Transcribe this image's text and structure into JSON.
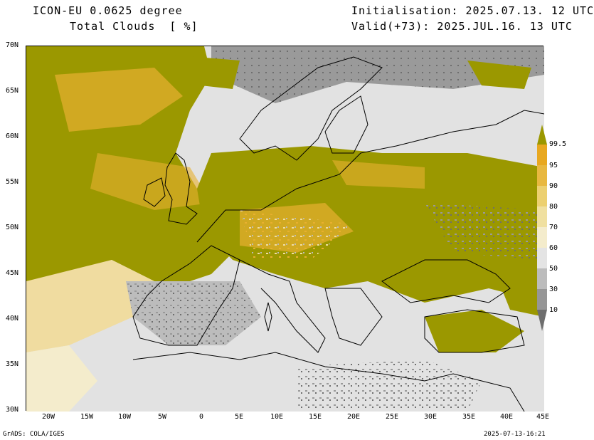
{
  "header": {
    "model": "ICON-EU 0.0625 degree",
    "variable": "Total Clouds  [ %]",
    "init": "Initialisation: 2025.07.13. 12 UTC",
    "valid": "Valid(+73): 2025.JUL.16. 13 UTC"
  },
  "footer": {
    "left": "GrADS: COLA/IGES",
    "right": "2025-07-13-16:21"
  },
  "axes": {
    "lat_labels": [
      "70N",
      "65N",
      "60N",
      "55N",
      "50N",
      "45N",
      "40N",
      "35N",
      "30N"
    ],
    "lon_labels": [
      "20W",
      "15W",
      "10W",
      "5W",
      "0",
      "5E",
      "10E",
      "15E",
      "20E",
      "25E",
      "30E",
      "35E",
      "40E",
      "45E"
    ]
  },
  "colorbar": {
    "levels": [
      "99.5",
      "95",
      "90",
      "80",
      "70",
      "60",
      "50",
      "30",
      "10"
    ],
    "colors": [
      "#9b9800",
      "#e8a820",
      "#e8b840",
      "#ecd070",
      "#f0e0a0",
      "#f4eccc",
      "#e4e4e4",
      "#bcbcbc",
      "#969696",
      "#6e6e6e"
    ]
  },
  "map": {
    "colors": {
      "sea_clear": "#e2e2e2",
      "overcast": "#9b9800",
      "high": "#e8b030",
      "mid": "#f0dca0",
      "low_grey": "#9a9a9a",
      "coast": "#000000"
    }
  }
}
